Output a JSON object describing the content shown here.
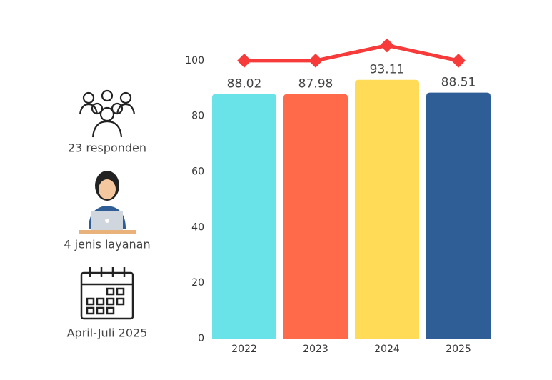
{
  "chart_data": {
    "type": "bar",
    "categories": [
      "2022",
      "2023",
      "2024",
      "2025"
    ],
    "values": [
      88.02,
      87.98,
      93.11,
      88.51
    ],
    "colors": [
      "#6ae3e8",
      "#ff6b4a",
      "#ffdb58",
      "#2f5d96"
    ],
    "line": {
      "color": "#f73a3a",
      "values": [
        100,
        100,
        105.5,
        100
      ]
    },
    "ylim": [
      0,
      110
    ],
    "yticks": [
      0,
      20,
      40,
      60,
      80,
      100
    ],
    "annotations": [
      "23 responden",
      "4 jenis layanan",
      "April-Juli 2025"
    ]
  }
}
